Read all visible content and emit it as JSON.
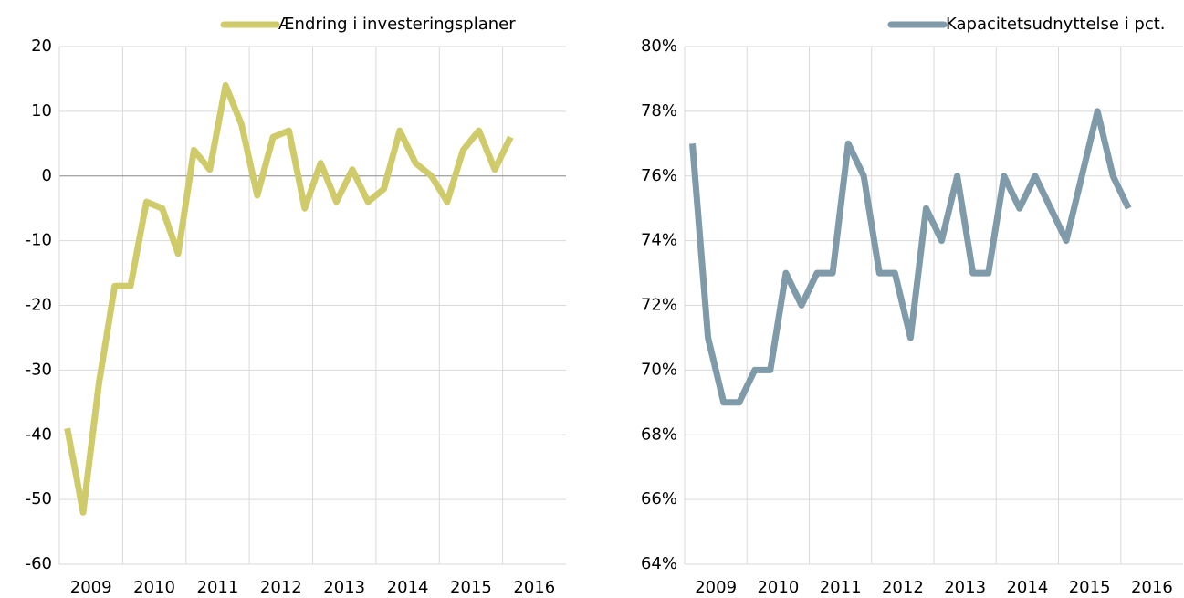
{
  "chart_data": [
    {
      "type": "line",
      "categories": [
        "2009",
        "2010",
        "2011",
        "2012",
        "2013",
        "2014",
        "2015",
        "2016"
      ],
      "x": [
        2009.125,
        2009.375,
        2009.625,
        2009.875,
        2010.125,
        2010.375,
        2010.625,
        2010.875,
        2011.125,
        2011.375,
        2011.625,
        2011.875,
        2012.125,
        2012.375,
        2012.625,
        2012.875,
        2013.125,
        2013.375,
        2013.625,
        2013.875,
        2014.125,
        2014.375,
        2014.625,
        2014.875,
        2015.125,
        2015.375,
        2015.625,
        2015.875,
        2016.125
      ],
      "xlim": [
        2009,
        2017
      ],
      "series": [
        {
          "name": "Ændring i investeringsplaner",
          "color": "#cfcb6b",
          "values": [
            -39,
            -52,
            -32,
            -17,
            -17,
            -4,
            -5,
            -12,
            4,
            1,
            14,
            8,
            -3,
            6,
            7,
            -5,
            2,
            -4,
            1,
            -4,
            -2,
            7,
            2,
            0,
            -4,
            4,
            7,
            1,
            6
          ]
        }
      ],
      "ylim": [
        -60,
        20
      ],
      "yticks": [
        -60,
        -50,
        -40,
        -30,
        -20,
        -10,
        0,
        10,
        20
      ],
      "grid": true,
      "legend": "top-right"
    },
    {
      "type": "line",
      "categories": [
        "2009",
        "2010",
        "2011",
        "2012",
        "2013",
        "2014",
        "2015",
        "2016"
      ],
      "x": [
        2009.125,
        2009.375,
        2009.625,
        2009.875,
        2010.125,
        2010.375,
        2010.625,
        2010.875,
        2011.125,
        2011.375,
        2011.625,
        2011.875,
        2012.125,
        2012.375,
        2012.625,
        2012.875,
        2013.125,
        2013.375,
        2013.625,
        2013.875,
        2014.125,
        2014.375,
        2014.625,
        2014.875,
        2015.125,
        2015.375,
        2015.625,
        2015.875,
        2016.125
      ],
      "xlim": [
        2009,
        2017
      ],
      "series": [
        {
          "name": "Kapacitetsudnyttelse i pct.",
          "color": "#7f9aa8",
          "values": [
            77,
            71,
            69,
            69,
            70,
            70,
            73,
            72,
            73,
            73,
            77,
            76,
            73,
            73,
            71,
            75,
            74,
            76,
            73,
            73,
            76,
            75,
            76,
            75,
            74,
            76,
            78,
            76,
            75
          ]
        }
      ],
      "ylim": [
        64,
        80
      ],
      "yticks": [
        {
          "value": 64,
          "label": "64%"
        },
        {
          "value": 66,
          "label": "66%"
        },
        {
          "value": 68,
          "label": "68%"
        },
        {
          "value": 70,
          "label": "70%"
        },
        {
          "value": 72,
          "label": "72%"
        },
        {
          "value": 74,
          "label": "74%"
        },
        {
          "value": 76,
          "label": "76%"
        },
        {
          "value": 78,
          "label": "78%"
        },
        {
          "value": 80,
          "label": "80%"
        }
      ],
      "grid": true,
      "legend": "top-right"
    }
  ]
}
